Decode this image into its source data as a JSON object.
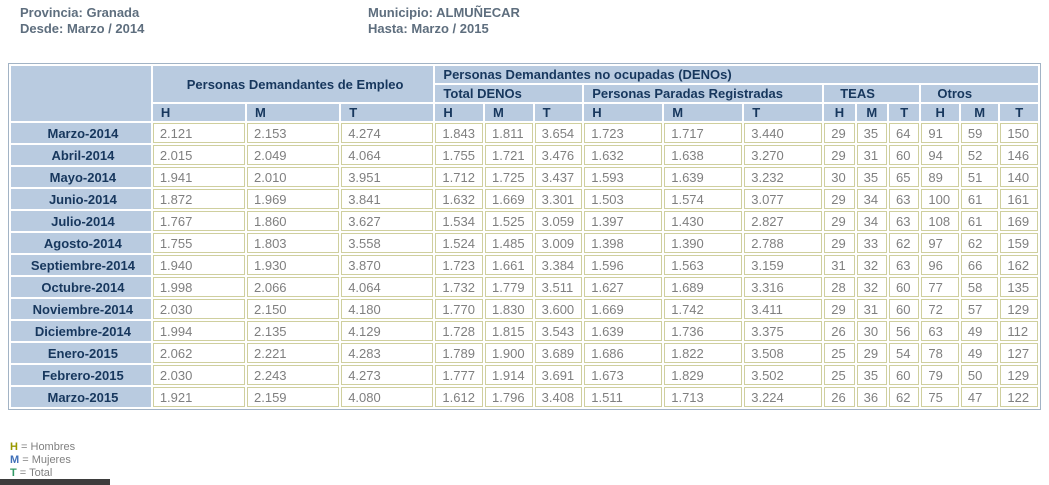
{
  "info": {
    "provincia_label": "Provincia:",
    "provincia_value": "Granada",
    "desde_label": "Desde:",
    "desde_value": "Marzo / 2014",
    "municipio_label": "Municipio:",
    "municipio_value": "ALMUÑECAR",
    "hasta_label": "Hasta:",
    "hasta_value": "Marzo / 2015"
  },
  "table": {
    "group_empleo": "Personas Demandantes de Empleo",
    "group_denos": "Personas Demandantes no ocupadas (DENOs)",
    "group_total_denos": "Total DENOs",
    "group_paradas": "Personas Paradas Registradas",
    "group_teas": "TEAS",
    "group_otros": "Otros",
    "col_h": "H",
    "col_m": "M",
    "col_t": "T",
    "rows": [
      {
        "month": "Marzo-2014",
        "values": [
          "2.121",
          "2.153",
          "4.274",
          "1.843",
          "1.811",
          "3.654",
          "1.723",
          "1.717",
          "3.440",
          "29",
          "35",
          "64",
          "91",
          "59",
          "150"
        ]
      },
      {
        "month": "Abril-2014",
        "values": [
          "2.015",
          "2.049",
          "4.064",
          "1.755",
          "1.721",
          "3.476",
          "1.632",
          "1.638",
          "3.270",
          "29",
          "31",
          "60",
          "94",
          "52",
          "146"
        ]
      },
      {
        "month": "Mayo-2014",
        "values": [
          "1.941",
          "2.010",
          "3.951",
          "1.712",
          "1.725",
          "3.437",
          "1.593",
          "1.639",
          "3.232",
          "30",
          "35",
          "65",
          "89",
          "51",
          "140"
        ]
      },
      {
        "month": "Junio-2014",
        "values": [
          "1.872",
          "1.969",
          "3.841",
          "1.632",
          "1.669",
          "3.301",
          "1.503",
          "1.574",
          "3.077",
          "29",
          "34",
          "63",
          "100",
          "61",
          "161"
        ]
      },
      {
        "month": "Julio-2014",
        "values": [
          "1.767",
          "1.860",
          "3.627",
          "1.534",
          "1.525",
          "3.059",
          "1.397",
          "1.430",
          "2.827",
          "29",
          "34",
          "63",
          "108",
          "61",
          "169"
        ]
      },
      {
        "month": "Agosto-2014",
        "values": [
          "1.755",
          "1.803",
          "3.558",
          "1.524",
          "1.485",
          "3.009",
          "1.398",
          "1.390",
          "2.788",
          "29",
          "33",
          "62",
          "97",
          "62",
          "159"
        ]
      },
      {
        "month": "Septiembre-2014",
        "values": [
          "1.940",
          "1.930",
          "3.870",
          "1.723",
          "1.661",
          "3.384",
          "1.596",
          "1.563",
          "3.159",
          "31",
          "32",
          "63",
          "96",
          "66",
          "162"
        ]
      },
      {
        "month": "Octubre-2014",
        "values": [
          "1.998",
          "2.066",
          "4.064",
          "1.732",
          "1.779",
          "3.511",
          "1.627",
          "1.689",
          "3.316",
          "28",
          "32",
          "60",
          "77",
          "58",
          "135"
        ]
      },
      {
        "month": "Noviembre-2014",
        "values": [
          "2.030",
          "2.150",
          "4.180",
          "1.770",
          "1.830",
          "3.600",
          "1.669",
          "1.742",
          "3.411",
          "29",
          "31",
          "60",
          "72",
          "57",
          "129"
        ]
      },
      {
        "month": "Diciembre-2014",
        "values": [
          "1.994",
          "2.135",
          "4.129",
          "1.728",
          "1.815",
          "3.543",
          "1.639",
          "1.736",
          "3.375",
          "26",
          "30",
          "56",
          "63",
          "49",
          "112"
        ]
      },
      {
        "month": "Enero-2015",
        "values": [
          "2.062",
          "2.221",
          "4.283",
          "1.789",
          "1.900",
          "3.689",
          "1.686",
          "1.822",
          "3.508",
          "25",
          "29",
          "54",
          "78",
          "49",
          "127"
        ]
      },
      {
        "month": "Febrero-2015",
        "values": [
          "2.030",
          "2.243",
          "4.273",
          "1.777",
          "1.914",
          "3.691",
          "1.673",
          "1.829",
          "3.502",
          "25",
          "35",
          "60",
          "79",
          "50",
          "129"
        ]
      },
      {
        "month": "Marzo-2015",
        "values": [
          "1.921",
          "2.159",
          "4.080",
          "1.612",
          "1.796",
          "3.408",
          "1.511",
          "1.713",
          "3.224",
          "26",
          "36",
          "62",
          "75",
          "47",
          "122"
        ]
      }
    ]
  },
  "legend": [
    {
      "key": "H",
      "text": "= Hombres"
    },
    {
      "key": "M",
      "text": "= Mujeres"
    },
    {
      "key": "T",
      "text": "= Total"
    }
  ],
  "colors": {
    "header_bg": "#b9cbe0",
    "header_text": "#17375d",
    "cell_border": "#cfcf9e",
    "cell_text": "#7f7f7f",
    "info_text": "#5e6e7e",
    "legend_h": "#999900",
    "legend_m": "#4070b8",
    "legend_t": "#339966"
  }
}
